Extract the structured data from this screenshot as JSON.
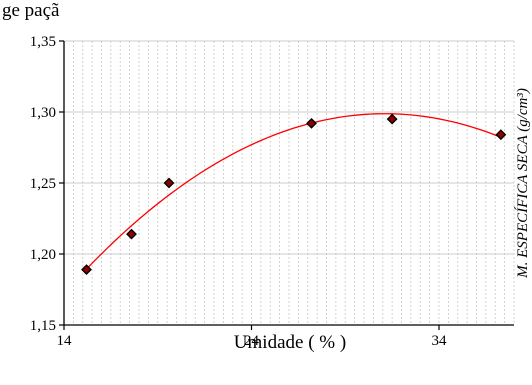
{
  "header_text": "ge                                    paçã",
  "chart_data": {
    "type": "scatter",
    "title": "",
    "xlabel": "Umidade ( % )",
    "ylabel": "M. ESPECÍFICA SECA (g/cm³)",
    "xlim": [
      14,
      38
    ],
    "ylim": [
      1.15,
      1.35
    ],
    "x_ticks": [
      {
        "value": 14,
        "label": "14"
      },
      {
        "value": 24,
        "label": "24"
      },
      {
        "value": 34,
        "label": "34"
      }
    ],
    "y_ticks": [
      {
        "value": 1.15,
        "label": "1,15"
      },
      {
        "value": 1.2,
        "label": "1,20"
      },
      {
        "value": 1.25,
        "label": "1,25"
      },
      {
        "value": 1.3,
        "label": "1,30"
      },
      {
        "value": 1.35,
        "label": "1,35"
      }
    ],
    "grid": true,
    "series": [
      {
        "marker_color": "#8b0000",
        "points": [
          {
            "x": 15.2,
            "y": 1.189
          },
          {
            "x": 17.6,
            "y": 1.214
          },
          {
            "x": 19.6,
            "y": 1.25
          },
          {
            "x": 27.2,
            "y": 1.292
          },
          {
            "x": 31.5,
            "y": 1.295
          },
          {
            "x": 37.3,
            "y": 1.284
          }
        ]
      }
    ],
    "trendline": {
      "type": "polynomial",
      "color": "#ff0000",
      "points": [
        {
          "x": 15.2,
          "y": 1.189
        },
        {
          "x": 23.0,
          "y": 1.271
        },
        {
          "x": 31.0,
          "y": 1.299
        },
        {
          "x": 37.3,
          "y": 1.284
        }
      ]
    }
  }
}
